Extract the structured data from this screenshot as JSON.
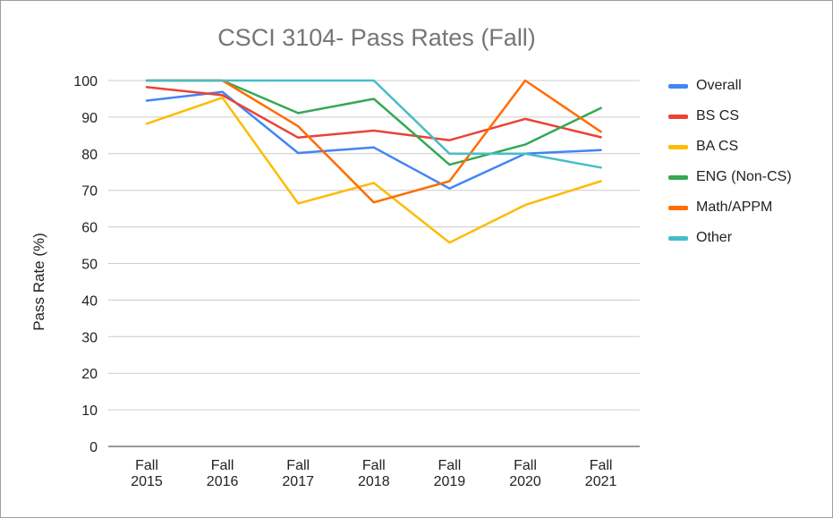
{
  "chart_data": {
    "type": "line",
    "title": "CSCI 3104- Pass Rates (Fall)",
    "xlabel": "",
    "ylabel": "Pass Rate (%)",
    "ylim": [
      0,
      100
    ],
    "yticks": [
      0,
      10,
      20,
      30,
      40,
      50,
      60,
      70,
      80,
      90,
      100
    ],
    "grid": true,
    "legend_position": "right",
    "categories": [
      {
        "line1": "Fall",
        "line2": "2015"
      },
      {
        "line1": "Fall",
        "line2": "2016"
      },
      {
        "line1": "Fall",
        "line2": "2017"
      },
      {
        "line1": "Fall",
        "line2": "2018"
      },
      {
        "line1": "Fall",
        "line2": "2019"
      },
      {
        "line1": "Fall",
        "line2": "2020"
      },
      {
        "line1": "Fall",
        "line2": "2021"
      }
    ],
    "series": [
      {
        "name": "Overall",
        "color": "#4285f4",
        "values": [
          94.5,
          96.9,
          80.2,
          81.7,
          70.5,
          80,
          81
        ]
      },
      {
        "name": "BS CS",
        "color": "#ea4335",
        "values": [
          98.2,
          96,
          84.4,
          86.3,
          83.7,
          89.5,
          84.5
        ]
      },
      {
        "name": "BA CS",
        "color": "#fbbc04",
        "values": [
          88.2,
          95.3,
          66.4,
          72,
          55.7,
          66,
          72.5
        ]
      },
      {
        "name": "ENG (Non-CS)",
        "color": "#34a853",
        "values": [
          100,
          100,
          91.1,
          95,
          77,
          82.5,
          92.5
        ]
      },
      {
        "name": "Math/APPM",
        "color": "#ff6d01",
        "values": [
          100,
          100,
          87.5,
          66.7,
          72.5,
          100,
          86
        ]
      },
      {
        "name": "Other",
        "color": "#46bdc6",
        "values": [
          100,
          100,
          100,
          100,
          80,
          80,
          76.2
        ]
      }
    ]
  }
}
